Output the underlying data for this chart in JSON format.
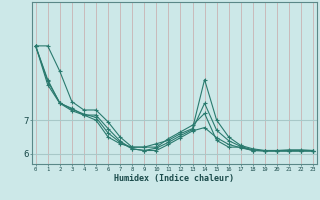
{
  "xlabel": "Humidex (Indice chaleur)",
  "bg_color": "#cce8e8",
  "line_color": "#2a7a6e",
  "grid_color_v": "#c8a8a8",
  "grid_color_h": "#a8c8c8",
  "x_min": 0,
  "x_max": 23,
  "y_min": 5.7,
  "y_max": 10.5,
  "yticks": [
    6,
    7
  ],
  "lines": [
    [
      9.2,
      9.2,
      8.45,
      7.55,
      7.3,
      7.3,
      6.95,
      6.5,
      6.2,
      6.2,
      6.2,
      6.45,
      6.65,
      6.85,
      7.2,
      6.4,
      6.2,
      6.2,
      6.1,
      6.1,
      6.1,
      6.12,
      6.12,
      6.1
    ],
    [
      9.2,
      8.05,
      7.5,
      7.35,
      7.15,
      7.0,
      6.5,
      6.3,
      6.2,
      6.2,
      6.3,
      6.4,
      6.6,
      6.75,
      8.2,
      7.0,
      6.5,
      6.25,
      6.15,
      6.1,
      6.1,
      6.1,
      6.1,
      6.1
    ],
    [
      9.2,
      8.2,
      7.5,
      7.28,
      7.15,
      7.15,
      6.75,
      6.38,
      6.15,
      6.1,
      6.1,
      6.28,
      6.48,
      6.68,
      6.78,
      6.48,
      6.28,
      6.18,
      6.1,
      6.08,
      6.08,
      6.08,
      6.08,
      6.08
    ],
    [
      9.2,
      8.15,
      7.52,
      7.32,
      7.18,
      7.08,
      6.62,
      6.34,
      6.15,
      6.1,
      6.17,
      6.34,
      6.54,
      6.72,
      7.5,
      6.7,
      6.39,
      6.22,
      6.12,
      6.09,
      6.09,
      6.09,
      6.09,
      6.09
    ]
  ]
}
